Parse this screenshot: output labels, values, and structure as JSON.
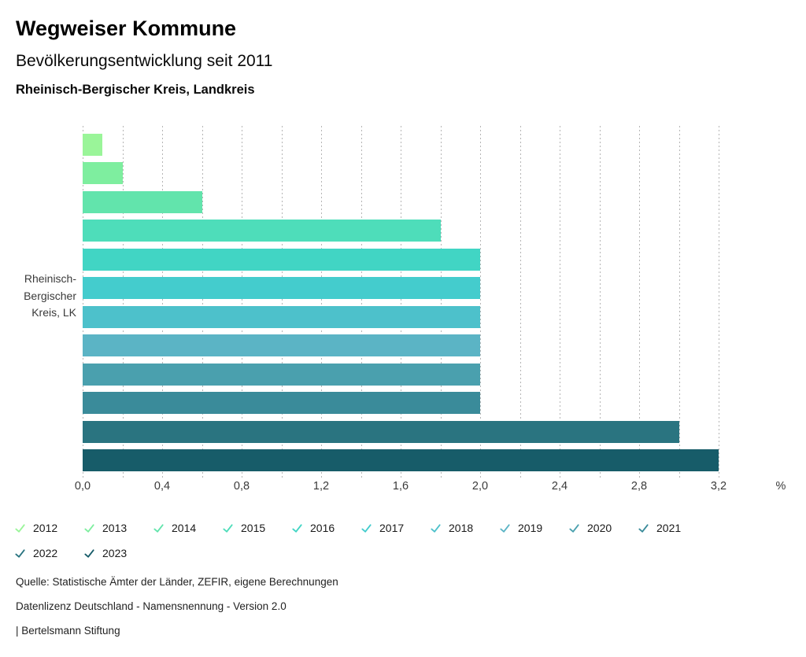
{
  "header": {
    "title": "Wegweiser Kommune",
    "subtitle": "Bevölkerungsentwicklung seit 2011",
    "region": "Rheinisch-Bergischer Kreis, Landkreis"
  },
  "chart_data": {
    "type": "bar",
    "orientation": "horizontal",
    "title": "Bevölkerungsentwicklung seit 2011",
    "category": "Rheinisch-Bergischer Kreis, LK",
    "category_label_lines": [
      "Rheinisch-",
      "Bergischer",
      "Kreis, LK"
    ],
    "xlabel": "%",
    "xlim": [
      0,
      3.2
    ],
    "grid_interval": 0.2,
    "tick_interval": 0.4,
    "xticks": [
      "0,0",
      "0,4",
      "0,8",
      "1,2",
      "1,6",
      "2,0",
      "2,4",
      "2,8",
      "3,2"
    ],
    "grid": "vertical dashed",
    "legend_position": "bottom",
    "series": [
      {
        "year": "2012",
        "value": 0.1,
        "color": "#9af599"
      },
      {
        "year": "2013",
        "value": 0.2,
        "color": "#7eee9f"
      },
      {
        "year": "2014",
        "value": 0.6,
        "color": "#62e4ac"
      },
      {
        "year": "2015",
        "value": 1.8,
        "color": "#4eddba"
      },
      {
        "year": "2016",
        "value": 2.0,
        "color": "#41d5c4"
      },
      {
        "year": "2017",
        "value": 2.0,
        "color": "#44cccd"
      },
      {
        "year": "2018",
        "value": 2.0,
        "color": "#4dc1cb"
      },
      {
        "year": "2019",
        "value": 2.0,
        "color": "#5bb4c5"
      },
      {
        "year": "2020",
        "value": 2.0,
        "color": "#4aa0ae"
      },
      {
        "year": "2021",
        "value": 2.0,
        "color": "#3a8b9a"
      },
      {
        "year": "2022",
        "value": 3.0,
        "color": "#2a7480"
      },
      {
        "year": "2023",
        "value": 3.2,
        "color": "#175c69"
      }
    ]
  },
  "legend": {
    "icon": "check-icon"
  },
  "footer": {
    "source": "Quelle: Statistische Ämter der Länder, ZEFIR, eigene Berechnungen",
    "license": "Datenlizenz Deutschland - Namensnennung - Version 2.0",
    "attribution": "| Bertelsmann Stiftung"
  }
}
